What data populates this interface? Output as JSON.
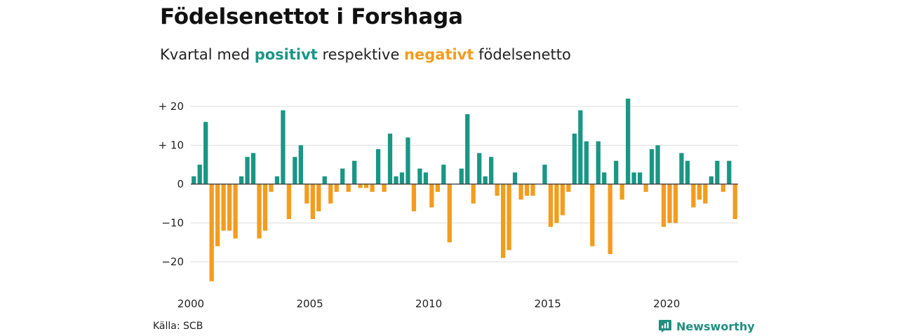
{
  "title": "Födelsenettot i Forshaga",
  "subtitle": {
    "prefix": "Kvartal med ",
    "positive_word": "positivt",
    "middle": " respektive ",
    "negative_word": "negativt",
    "suffix": " födelsenetto"
  },
  "source": "Källa: SCB",
  "brand": {
    "name": "Newsworthy",
    "icon": "newsworthy-logo-icon"
  },
  "colors": {
    "positive": "#1a9685",
    "negative": "#f39c1d",
    "grid": "#dddddd",
    "axis": "#333333",
    "brand": "#1f8f80"
  },
  "chart_data": {
    "type": "bar",
    "title": "",
    "xlabel": "",
    "ylabel": "",
    "ylim": [
      -27,
      24
    ],
    "yticks": [
      20,
      10,
      0,
      -10,
      -20
    ],
    "ytick_labels": [
      "+ 20",
      "+ 10",
      "0",
      "−10",
      "−20"
    ],
    "xticks": [
      2000,
      2005,
      2010,
      2015,
      2020
    ],
    "xtick_labels": [
      "2000",
      "2005",
      "2010",
      "2015",
      "2020"
    ],
    "grid": true,
    "start_year": 2000,
    "start_quarter": 1,
    "values": [
      2,
      5,
      16,
      -25,
      -16,
      -12,
      -12,
      -14,
      2,
      7,
      8,
      -14,
      -12,
      -2,
      2,
      19,
      -9,
      7,
      10,
      -5,
      -9,
      -7,
      2,
      -5,
      -2,
      4,
      -2,
      6,
      -1,
      -1,
      -2,
      9,
      -2,
      13,
      2,
      3,
      12,
      -7,
      4,
      3,
      -6,
      -2,
      5,
      -15,
      0,
      4,
      18,
      -5,
      8,
      2,
      7,
      -3,
      -19,
      -17,
      3,
      -4,
      -3,
      -3,
      0,
      5,
      -11,
      -10,
      -8,
      -2,
      13,
      19,
      11,
      -16,
      11,
      3,
      -18,
      6,
      -4,
      22,
      3,
      3,
      -2,
      9,
      10,
      -11,
      -10,
      -10,
      8,
      6,
      -6,
      -4,
      -5,
      2,
      6,
      -2,
      6,
      -9
    ]
  }
}
